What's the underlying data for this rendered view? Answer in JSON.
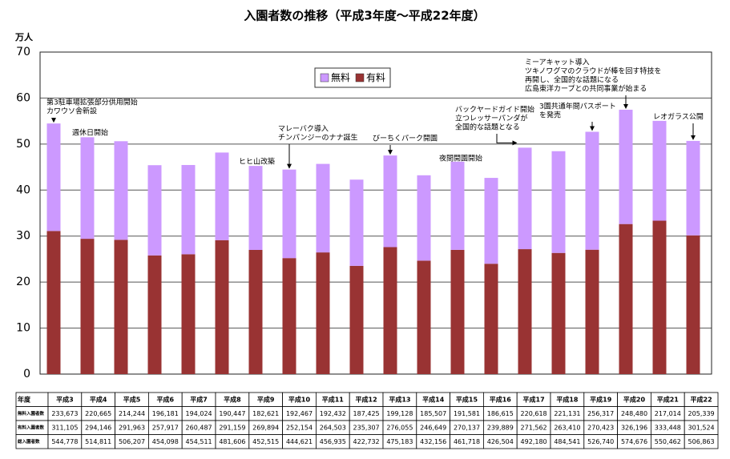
{
  "chart_data": {
    "type": "stacked_bar",
    "title": "入園者数の推移（平成3年度～平成22年度）",
    "y_axis_label": "万人",
    "categories": [
      "平成3",
      "平成4",
      "平成5",
      "平成6",
      "平成7",
      "平成8",
      "平成9",
      "平成10",
      "平成11",
      "平成12",
      "平成13",
      "平成14",
      "平成15",
      "平成16",
      "平成17",
      "平成18",
      "平成19",
      "平成20",
      "平成21",
      "平成22"
    ],
    "series": [
      {
        "name": "無料",
        "color": "#cc99ff",
        "values": [
          23.3673,
          22.0665,
          21.4244,
          19.6181,
          19.4024,
          19.0447,
          18.2621,
          19.2467,
          19.2432,
          18.7425,
          19.9128,
          18.5507,
          19.1581,
          18.6615,
          22.0618,
          22.1131,
          25.6317,
          24.848,
          21.7014,
          20.5339
        ],
        "value_labels": [
          "233,673",
          "220,665",
          "214,244",
          "196,181",
          "194,024",
          "190,447",
          "182,621",
          "192,467",
          "192,432",
          "187,425",
          "199,128",
          "185,507",
          "191,581",
          "186,615",
          "220,618",
          "221,131",
          "256,317",
          "248,480",
          "217,014",
          "205,339"
        ]
      },
      {
        "name": "有料",
        "color": "#993333",
        "values": [
          31.1105,
          29.4146,
          29.1963,
          25.7917,
          26.0487,
          29.1159,
          26.9894,
          25.2154,
          26.4503,
          23.5307,
          27.6055,
          24.6649,
          27.0137,
          23.9889,
          27.1562,
          26.341,
          27.0423,
          32.6196,
          33.3448,
          30.1524
        ],
        "value_labels": [
          "311,105",
          "294,146",
          "291,963",
          "257,917",
          "260,487",
          "291,159",
          "269,894",
          "252,154",
          "264,503",
          "235,307",
          "276,055",
          "246,649",
          "270,137",
          "239,889",
          "271,562",
          "263,410",
          "270,423",
          "326,196",
          "333,448",
          "301,524"
        ]
      }
    ],
    "ylim": [
      0,
      70
    ],
    "yticks": [
      0,
      10,
      20,
      30,
      40,
      50,
      60,
      70
    ],
    "grid": true,
    "legend": "top",
    "annotations": [
      [
        "第3駐車場拡張部分供用開始",
        "カワウソ舎新設"
      ],
      [
        "週休日開始"
      ],
      [
        "ヒヒ山改築"
      ],
      [
        "マレーバク導入",
        "チンパンジーのナナ誕生"
      ],
      [
        "びーちくパーク開園"
      ],
      [
        "夜間開園開始"
      ],
      [
        "バックヤードガイド開始",
        "立つレッサーパンダが",
        "全国的な話題となる"
      ],
      [
        "3園共通年間パスポート",
        "を発売"
      ],
      [
        "ミーアキャット導入",
        "ツキノワグマのクラウドが棒を回す特技を",
        "再開し、全国的な話題になる",
        "広島東洋カープとの共同事業が始まる"
      ],
      [
        "レオガラス公開"
      ]
    ],
    "table": {
      "row_labels": [
        "年度",
        "無料入園者数",
        "有料入園者数",
        "総入園者数"
      ],
      "totals": [
        "544,778",
        "514,811",
        "506,207",
        "454,098",
        "454,511",
        "481,606",
        "452,515",
        "444,621",
        "456,935",
        "422,732",
        "475,183",
        "432,156",
        "461,718",
        "426,504",
        "492,180",
        "484,541",
        "526,740",
        "574,676",
        "550,462",
        "506,863"
      ]
    }
  }
}
